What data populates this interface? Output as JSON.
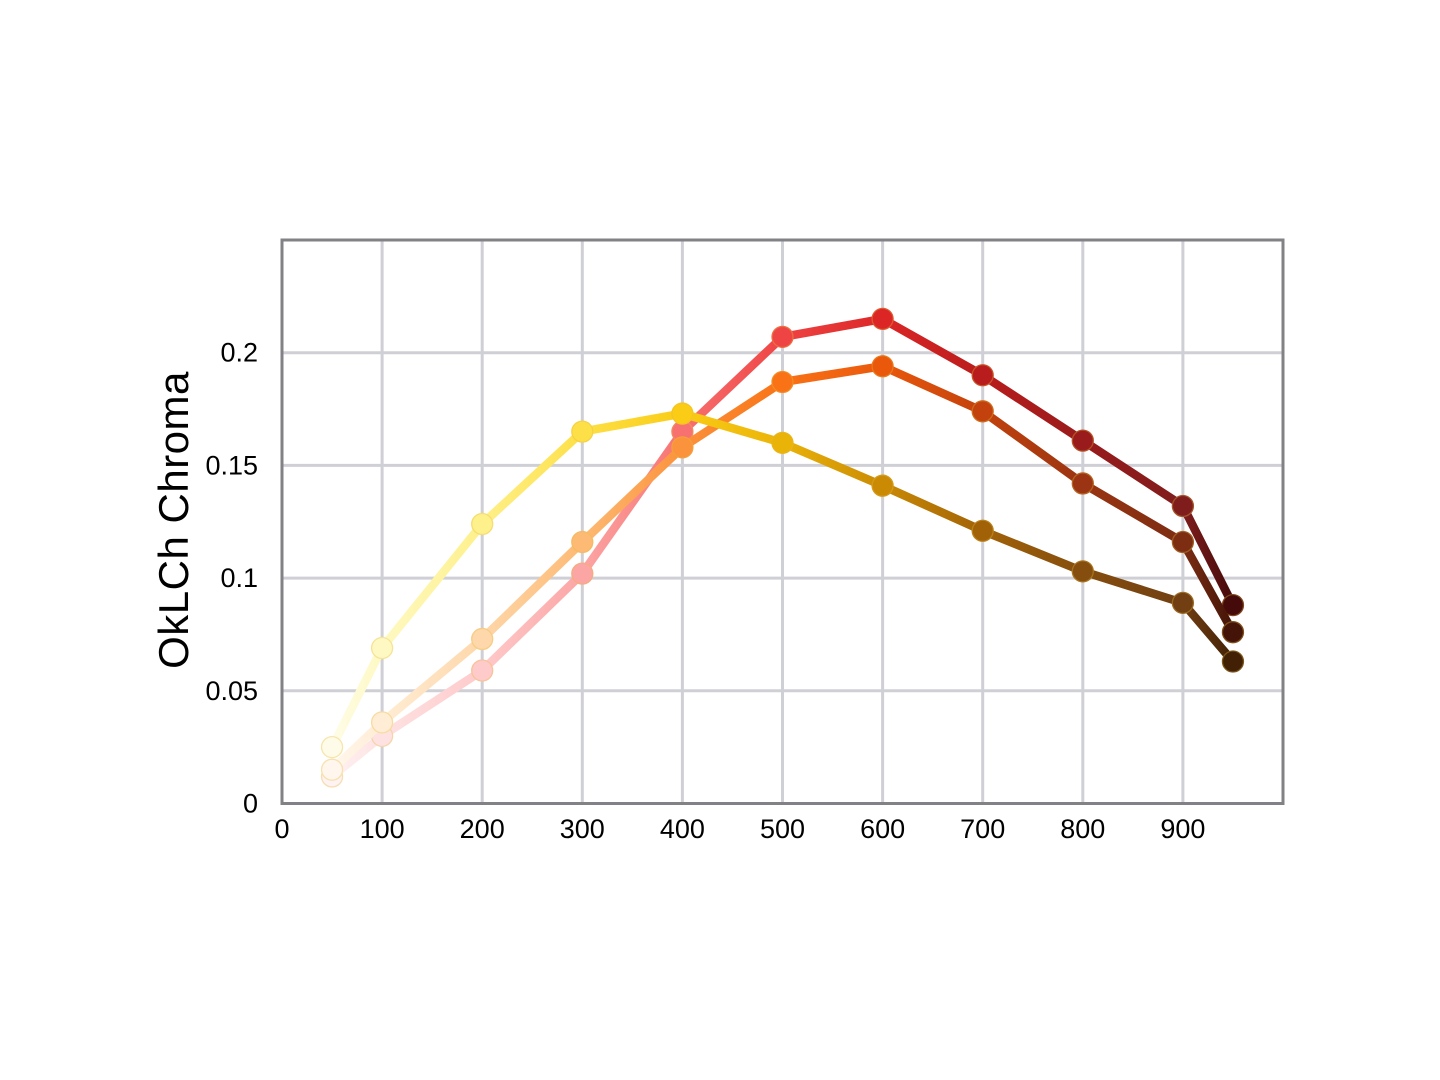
{
  "chart_data": {
    "type": "line",
    "title": "",
    "xlabel": "",
    "ylabel": "OkLCh Chroma",
    "x": [
      50,
      100,
      200,
      300,
      400,
      500,
      600,
      700,
      800,
      900,
      950
    ],
    "xlim": [
      0,
      1000
    ],
    "ylim": [
      0,
      0.25
    ],
    "x_ticks": [
      0,
      100,
      200,
      300,
      400,
      500,
      600,
      700,
      800,
      900
    ],
    "y_ticks": [
      0,
      0.05,
      0.1,
      0.15,
      0.2
    ],
    "y_tick_labels": [
      "0",
      "0.05",
      "0.1",
      "0.15",
      "0.2"
    ],
    "grid": true,
    "legend_position": "none",
    "series": [
      {
        "name": "red",
        "values": [
          0.012,
          0.03,
          0.059,
          0.102,
          0.165,
          0.207,
          0.215,
          0.19,
          0.161,
          0.132,
          0.088
        ],
        "point_colors": [
          "#fef2f2",
          "#fee2e2",
          "#fecaca",
          "#fca5a5",
          "#f87171",
          "#ef4444",
          "#dc2626",
          "#b91c1c",
          "#991b1b",
          "#7f1d1d",
          "#450a0a"
        ]
      },
      {
        "name": "orange",
        "values": [
          0.015,
          0.036,
          0.073,
          0.116,
          0.158,
          0.187,
          0.194,
          0.174,
          0.142,
          0.116,
          0.076
        ],
        "point_colors": [
          "#fff7ed",
          "#ffedd5",
          "#fed7aa",
          "#fdba74",
          "#fb923c",
          "#f97316",
          "#ea580c",
          "#c2410c",
          "#9a3412",
          "#7c2d12",
          "#431407"
        ]
      },
      {
        "name": "yellow",
        "values": [
          0.025,
          0.069,
          0.124,
          0.165,
          0.173,
          0.16,
          0.141,
          0.121,
          0.103,
          0.089,
          0.063
        ],
        "point_colors": [
          "#fefce8",
          "#fef9c3",
          "#fef08a",
          "#fde047",
          "#facc15",
          "#eab308",
          "#ca8a04",
          "#a16207",
          "#854d0e",
          "#713f12",
          "#422006"
        ]
      }
    ]
  },
  "style": {
    "background_color": "#ffffff",
    "plot_border_color": "#818186",
    "grid_color": "#cfcfd6",
    "tick_label_color": "#000000",
    "axis_title_color": "#000000",
    "marker_rim_mix_color": "#e8b93c"
  }
}
